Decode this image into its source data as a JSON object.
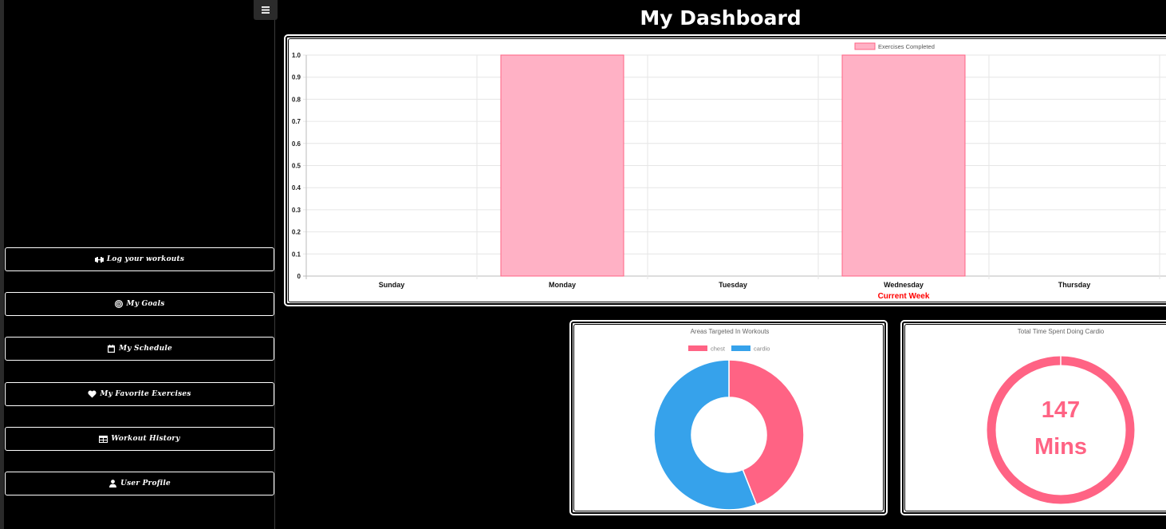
{
  "page": {
    "title": "My Dashboard"
  },
  "sidebar": {
    "toggle_icon": "menu-icon",
    "items": [
      {
        "label": "Log your workouts",
        "icon": "dumbbell-icon"
      },
      {
        "label": "My Goals",
        "icon": "target-icon"
      },
      {
        "label": "My Schedule",
        "icon": "calendar-icon"
      },
      {
        "label": "My Favorite Exercises",
        "icon": "heart-icon"
      },
      {
        "label": "Workout History",
        "icon": "table-icon"
      },
      {
        "label": "User Profile",
        "icon": "user-icon"
      }
    ]
  },
  "chart_data": [
    {
      "type": "bar",
      "title": "",
      "legend": "Exercises Completed",
      "legend_position": "top",
      "categories": [
        "Sunday",
        "Monday",
        "Tuesday",
        "Wednesday",
        "Thursday"
      ],
      "series": [
        {
          "name": "Exercises Completed",
          "values": [
            0,
            1,
            0,
            1,
            0
          ]
        }
      ],
      "xlabel": "Current Week",
      "ylabel": "",
      "ylim": [
        0,
        1
      ],
      "yticks": [
        "0",
        "0.1",
        "0.2",
        "0.3",
        "0.4",
        "0.5",
        "0.6",
        "0.7",
        "0.8",
        "0.9",
        "1.0"
      ],
      "grid": true,
      "colors": {
        "fill": "#ffb1c5",
        "border": "#ff6384",
        "xlabel": "#ff0000"
      }
    },
    {
      "type": "pie",
      "title": "Areas Targeted In Workouts",
      "categories": [
        "chest",
        "cardio"
      ],
      "values": [
        44,
        56
      ],
      "legend_position": "top",
      "colors": [
        "#ff6384",
        "#36a2eb"
      ]
    },
    {
      "type": "pie",
      "title": "Total Time Spent Doing Cardio",
      "categories": [
        "cardio"
      ],
      "values": [
        147
      ],
      "center_value": "147",
      "center_unit": "Mins",
      "colors": [
        "#ff6384"
      ]
    }
  ],
  "colors": {
    "accent_pink": "#ff6384",
    "accent_blue": "#36a2eb",
    "background": "#000000"
  }
}
